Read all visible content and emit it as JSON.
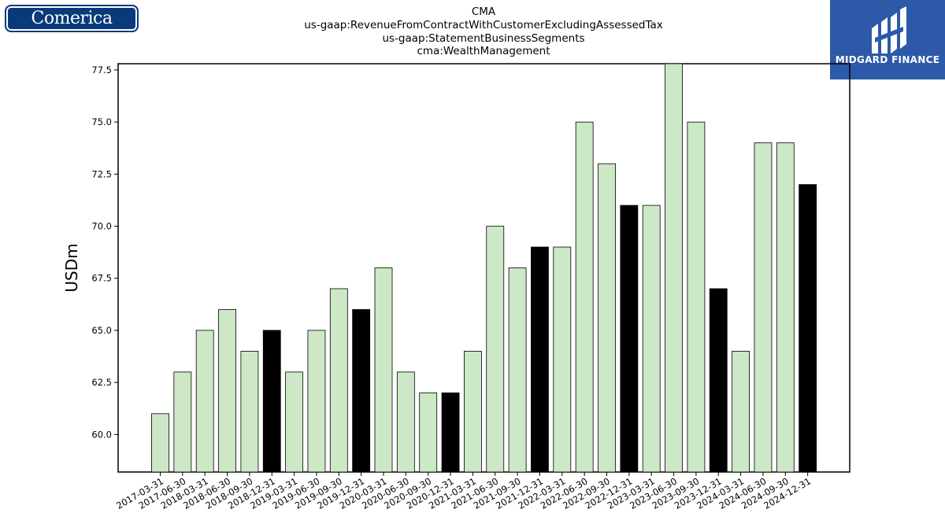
{
  "logos": {
    "left_text": "Comerica",
    "right_text": "MIDGARD FINANCE"
  },
  "colors": {
    "bar_regular": "#cce8c6",
    "bar_q4": "#000000",
    "logo_left_bg": "#0a3a7a",
    "logo_right_bg": "#2c5aa8"
  },
  "chart_data": {
    "type": "bar",
    "title_lines": [
      "CMA",
      "us-gaap:RevenueFromContractWithCustomerExcludingAssessedTax",
      "us-gaap:StatementBusinessSegments",
      "cma:WealthManagement"
    ],
    "xlabel": "",
    "ylabel": "USDm",
    "ylim": [
      58.2,
      77.8
    ],
    "yticks": [
      "60.0",
      "62.5",
      "65.0",
      "67.5",
      "70.0",
      "72.5",
      "75.0",
      "77.5"
    ],
    "grid": false,
    "categories": [
      "2017-03-31",
      "2017-06-30",
      "2018-03-31",
      "2018-06-30",
      "2018-09-30",
      "2018-12-31",
      "2019-03-31",
      "2019-06-30",
      "2019-09-30",
      "2019-12-31",
      "2020-03-31",
      "2020-06-30",
      "2020-09-30",
      "2020-12-31",
      "2021-03-31",
      "2021-06-30",
      "2021-09-30",
      "2021-12-31",
      "2022-03-31",
      "2022-06-30",
      "2022-09-30",
      "2022-12-31",
      "2023-03-31",
      "2023-06-30",
      "2023-09-30",
      "2023-12-31",
      "2024-03-31",
      "2024-06-30",
      "2024-09-30",
      "2024-12-31"
    ],
    "values": [
      61,
      63,
      65,
      66,
      64,
      65,
      63,
      65,
      67,
      66,
      68,
      63,
      62,
      62,
      64,
      70,
      68,
      69,
      69,
      75,
      73,
      71,
      71,
      78,
      75,
      67,
      64,
      74,
      74,
      72
    ]
  }
}
